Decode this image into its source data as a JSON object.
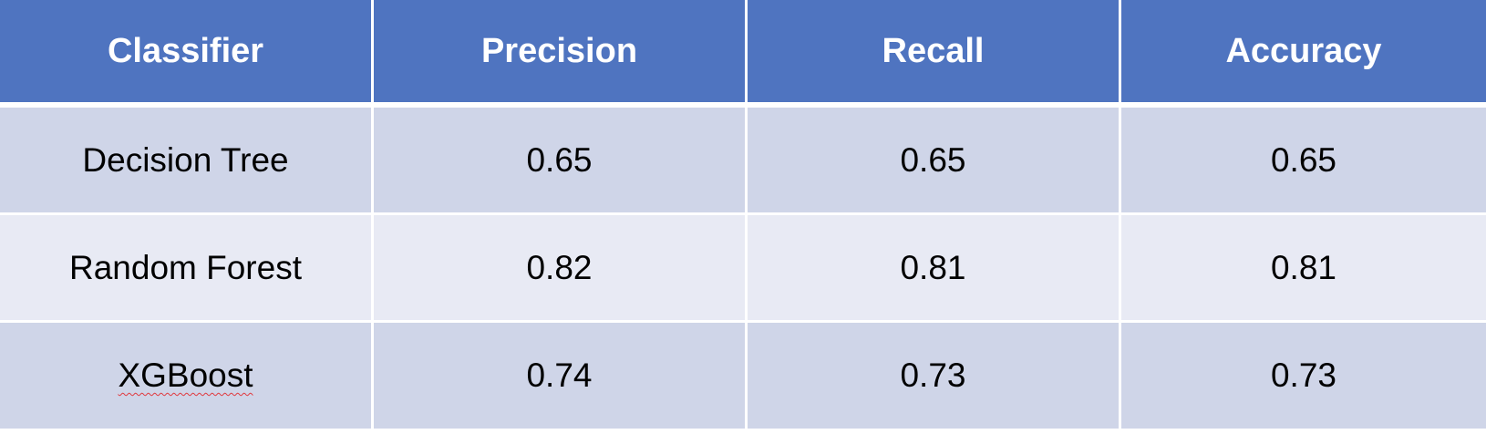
{
  "table": {
    "headers": [
      "Classifier",
      "Precision",
      "Recall",
      "Accuracy"
    ],
    "rows": [
      [
        "Decision Tree",
        "0.65",
        "0.65",
        "0.65"
      ],
      [
        "Random Forest",
        "0.82",
        "0.81",
        "0.81"
      ],
      [
        "XGBoost",
        "0.74",
        "0.73",
        "0.73"
      ]
    ]
  },
  "colors": {
    "header_bg": "#4f74c0",
    "row_band_dark": "#cfd5e8",
    "row_band_light": "#e8eaf4",
    "spellcheck_underline": "#e0393e"
  }
}
